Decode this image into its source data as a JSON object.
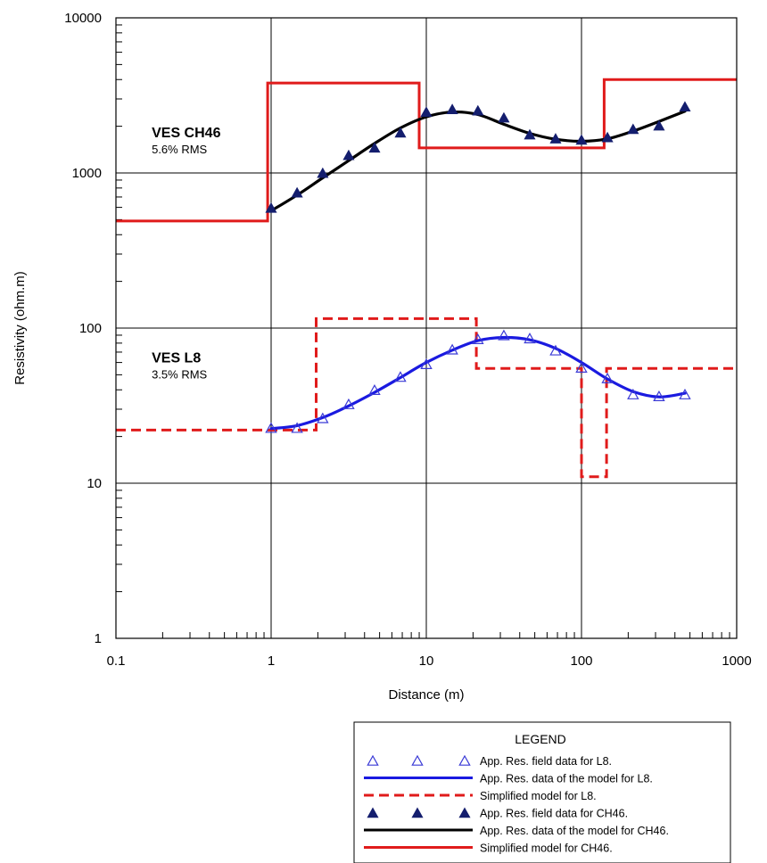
{
  "chart_data": {
    "type": "line",
    "xlabel": "Distance (m)",
    "ylabel": "Resistivity (ohm.m)",
    "x_scale": "log",
    "y_scale": "log",
    "xlim": [
      0.1,
      1000
    ],
    "ylim": [
      1,
      10000
    ],
    "grid": true,
    "x_tick_labels": [
      "0.1",
      "1",
      "10",
      "100",
      "1000"
    ],
    "y_tick_labels": [
      "1",
      "10",
      "100",
      "1000",
      "10000"
    ],
    "annotations": [
      {
        "id": "ch46",
        "title": "VES CH46",
        "subtitle": "5.6% RMS",
        "x": 0.17,
        "y": 1700
      },
      {
        "id": "l8",
        "title": "VES L8",
        "subtitle": "3.5% RMS",
        "x": 0.17,
        "y": 60
      }
    ],
    "series": [
      {
        "key": "l8_field",
        "name": "App. Res. field data for L8.",
        "kind": "open-triangle",
        "color": "#3a3ad6",
        "x": [
          1,
          1.47,
          2.15,
          3.16,
          4.64,
          6.81,
          10,
          14.7,
          21.5,
          31.6,
          46.4,
          68.1,
          100,
          147,
          215,
          316,
          464
        ],
        "y": [
          22.5,
          22.5,
          26,
          32,
          39.5,
          48,
          58,
          72,
          84,
          89,
          85,
          71,
          55,
          47,
          37,
          36,
          37
        ]
      },
      {
        "key": "l8_model",
        "name": "App. Res. data of the model for L8.",
        "kind": "line",
        "color": "#1a1ae0",
        "x": [
          1,
          1.47,
          2.15,
          3.16,
          4.64,
          6.81,
          10,
          14.7,
          21.5,
          31.6,
          46.4,
          68.1,
          100,
          147,
          215,
          316,
          464
        ],
        "y": [
          22.5,
          23.5,
          26.5,
          31.5,
          38.5,
          48,
          60,
          72,
          83,
          87,
          84,
          74,
          60,
          47,
          39,
          36,
          38
        ]
      },
      {
        "key": "l8_simplified",
        "name": "Simplified model for L8.",
        "kind": "dashed-step",
        "color": "#e01b1b",
        "x": [
          0.1,
          1.95,
          1.95,
          21,
          21,
          100,
          100,
          145,
          145,
          1000
        ],
        "y": [
          22,
          22,
          115,
          115,
          55,
          55,
          11,
          11,
          55,
          55
        ]
      },
      {
        "key": "ch46_field",
        "name": "App. Res. field data for CH46.",
        "kind": "filled-triangle",
        "color": "#141e6e",
        "x": [
          1,
          1.47,
          2.15,
          3.16,
          4.64,
          6.81,
          10,
          14.7,
          21.5,
          31.6,
          46.4,
          68.1,
          100,
          147,
          215,
          316,
          464
        ],
        "y": [
          590,
          740,
          990,
          1290,
          1440,
          1800,
          2450,
          2550,
          2500,
          2250,
          1750,
          1650,
          1620,
          1680,
          1900,
          2000,
          2650
        ]
      },
      {
        "key": "ch46_model",
        "name": "App. Res. data of the model for CH46.",
        "kind": "line",
        "color": "#000000",
        "x": [
          1,
          1.47,
          2.15,
          3.16,
          4.64,
          6.81,
          10,
          14.7,
          21.5,
          31.6,
          46.4,
          68.1,
          100,
          147,
          215,
          316,
          464
        ],
        "y": [
          570,
          720,
          930,
          1200,
          1550,
          1950,
          2300,
          2470,
          2380,
          2060,
          1800,
          1650,
          1600,
          1660,
          1860,
          2150,
          2500
        ]
      },
      {
        "key": "ch46_simplified",
        "name": "Simplified model for CH46.",
        "kind": "step",
        "color": "#e01b1b",
        "x": [
          0.1,
          0.95,
          0.95,
          9,
          9,
          140,
          140,
          1000
        ],
        "y": [
          490,
          490,
          3800,
          3800,
          1450,
          1450,
          4000,
          4000
        ]
      }
    ],
    "legend": {
      "title": "LEGEND",
      "placement": "bottom-right"
    }
  }
}
